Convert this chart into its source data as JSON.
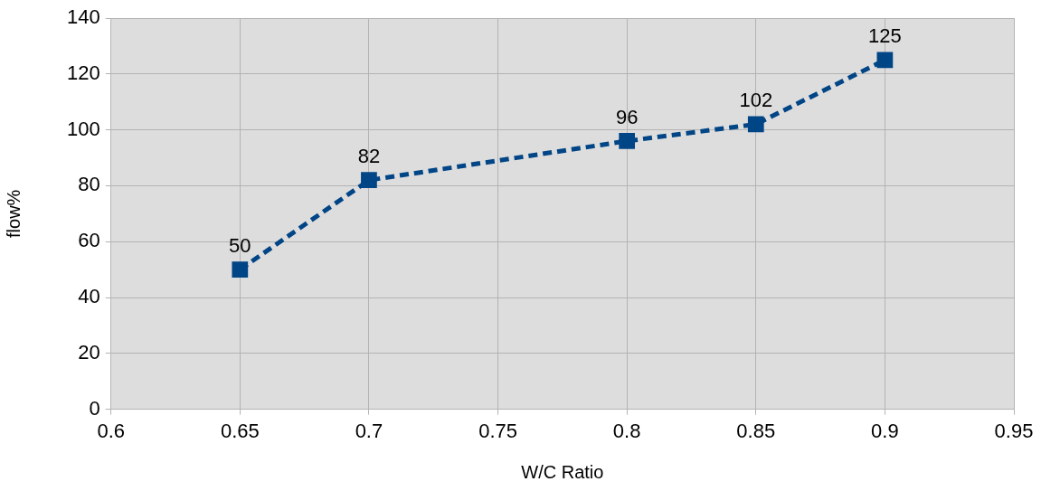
{
  "chart_data": {
    "type": "line",
    "xlabel": "W/C Ratio",
    "ylabel": "flow%",
    "x": [
      0.65,
      0.7,
      0.8,
      0.85,
      0.9
    ],
    "series": [
      {
        "color": "#004586",
        "values": [
          50,
          82,
          96,
          102,
          125
        ]
      }
    ],
    "xlim": [
      0.6,
      0.95
    ],
    "xticks": [
      0.6,
      0.65,
      0.7,
      0.75,
      0.8,
      0.85,
      0.9,
      0.95
    ],
    "ylim": [
      0,
      140
    ],
    "yticks": [
      0,
      20,
      40,
      60,
      80,
      100,
      120,
      140
    ],
    "grid": true,
    "legend": false,
    "marker": "square",
    "line_style": "dashed",
    "data_labels": true
  }
}
